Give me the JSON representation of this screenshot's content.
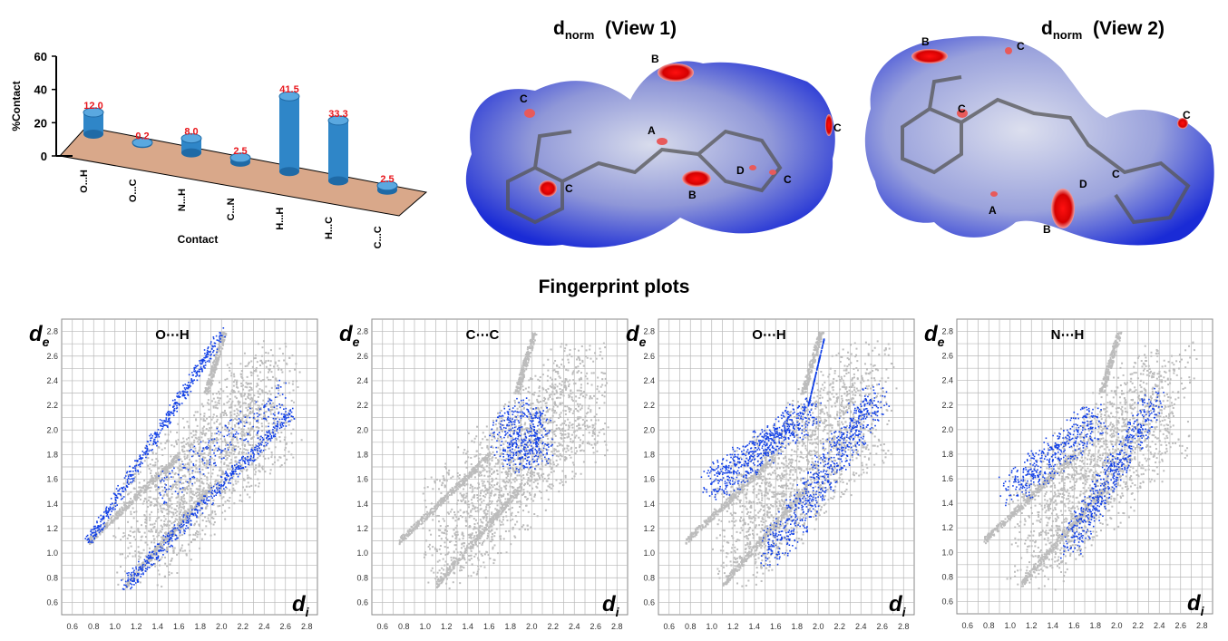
{
  "colors": {
    "platform": "#d9a88a",
    "cylinder": "#2f86c8",
    "bar_label": "#e8151b",
    "surface_blue": "#1a2bd6",
    "fingerprint_gray": "#bcbcbc",
    "fingerprint_blue": "#1240e6",
    "grid": "#b8b8b8",
    "red_spot": "#e00000"
  },
  "bar_chart": {
    "ylabel": "%Contact",
    "xlabel": "Contact",
    "yticks": [
      "0",
      "20",
      "40",
      "60"
    ]
  },
  "surface_views": [
    {
      "title_main": "d",
      "title_sub": "norm",
      "title_rest": "(View 1)",
      "labels": [
        "B",
        "C",
        "A",
        "C",
        "B",
        "D",
        "C",
        "C"
      ]
    },
    {
      "title_main": "d",
      "title_sub": "norm",
      "title_rest": "(View 2)",
      "labels": [
        "B",
        "C",
        "C",
        "C",
        "D",
        "C",
        "A",
        "B"
      ]
    }
  ],
  "fingerprint_section_title": "Fingerprint plots",
  "fingerprint_plots": [
    {
      "title": "O⋯H",
      "y_axis_label": "d",
      "y_axis_sub": "e",
      "x_axis_label": "d",
      "x_axis_sub": "i"
    },
    {
      "title": "C⋯C",
      "y_axis_label": "d",
      "y_axis_sub": "e",
      "x_axis_label": "d",
      "x_axis_sub": "i"
    },
    {
      "title": "O⋯H",
      "y_axis_label": "d",
      "y_axis_sub": "e",
      "x_axis_label": "d",
      "x_axis_sub": "i"
    },
    {
      "title": "N⋯H",
      "y_axis_label": "d",
      "y_axis_sub": "e",
      "x_axis_label": "d",
      "x_axis_sub": "i"
    }
  ],
  "fingerprint_axes": {
    "x_ticks": [
      "0.6",
      "0.8",
      "1.0",
      "1.2",
      "1.4",
      "1.6",
      "1.8",
      "2.0",
      "2.2",
      "2.4",
      "2.6",
      "2.8"
    ],
    "y_ticks": [
      "2.8",
      "2.6",
      "2.4",
      "2.2",
      "2.0",
      "1.8",
      "1.6",
      "1.4",
      "1.2",
      "1.0",
      "0.8",
      "0.6"
    ]
  },
  "chart_data": {
    "type": "bar",
    "categories": [
      "O...H",
      "O...C",
      "N...H",
      "C...N",
      "H...H",
      "H...C",
      "C...C"
    ],
    "values": [
      12.0,
      0.2,
      8.0,
      2.5,
      41.5,
      33.3,
      2.5
    ],
    "value_labels": [
      "12.0",
      "0.2",
      "8.0",
      "2.5",
      "41.5",
      "33.3",
      "2.5"
    ],
    "xlabel": "Contact",
    "ylabel": "%Contact",
    "ylim": [
      0,
      60
    ],
    "style": "3d-cylinder"
  }
}
